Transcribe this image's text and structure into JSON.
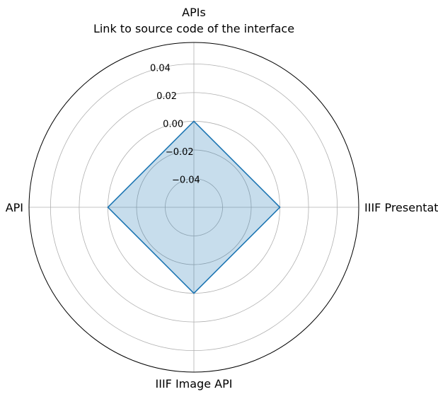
{
  "chart_data": {
    "type": "radar",
    "title": "APIs",
    "subtitle": "Link to source code of the interface",
    "categories": [
      "IIIF Presentation API",
      "APIs",
      "API",
      "IIIF Image API"
    ],
    "series": [
      {
        "values": [
          0,
          0,
          0,
          0
        ],
        "color": "#1f77b4",
        "fill": "#1f77b4",
        "fill_opacity": 0.25
      }
    ],
    "rlim": [
      -0.06,
      0.055
    ],
    "rticks": [
      -0.04,
      -0.02,
      0.0,
      0.02,
      0.04
    ],
    "rtick_labels": [
      "−0.04",
      "−0.02",
      "0.00",
      "0.02",
      "0.04"
    ],
    "category_labels": [
      "IIIF Presentation API",
      "",
      "API",
      "IIIF Image API"
    ],
    "grid": true
  }
}
